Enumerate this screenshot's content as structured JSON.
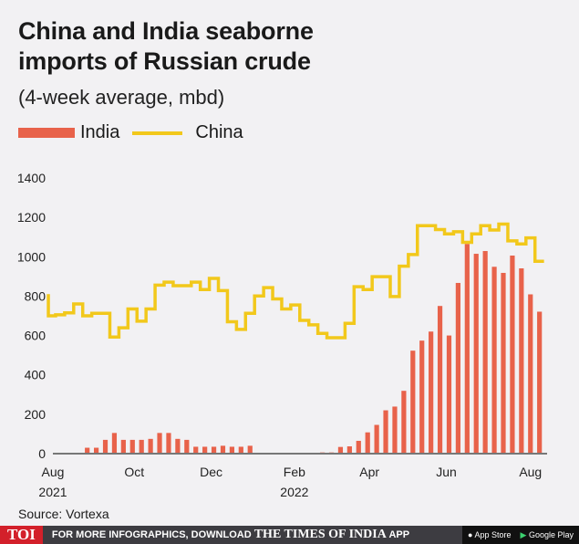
{
  "header": {
    "title_line1": "China and India seaborne",
    "title_line2": "imports of Russian crude",
    "subtitle": "(4-week average, mbd)"
  },
  "legend": {
    "india": "India",
    "china": "China"
  },
  "source": "Source: Vortexa",
  "footer": {
    "logo": "TOI",
    "promo_prefix": "FOR MORE INFOGRAPHICS, DOWNLOAD",
    "brand": "THE TIMES OF INDIA",
    "promo_suffix": "APP",
    "app_store": "App Store",
    "google_play": "Google Play"
  },
  "colors": {
    "india": "#e8624a",
    "china": "#f2c81b",
    "axis": "#777777"
  },
  "chart_data": {
    "type": "bar+line",
    "title": "China and India seaborne imports of Russian crude",
    "ylabel": "4-week average, mbd",
    "ylim": [
      0,
      1400
    ],
    "yticks": [
      0,
      200,
      400,
      600,
      800,
      1000,
      1200,
      1400
    ],
    "x_unit": "week index from start of Aug 2021",
    "xticks": [
      {
        "week": 0,
        "label": "Aug",
        "sub": "2021"
      },
      {
        "week": 9,
        "label": "Oct",
        "sub": ""
      },
      {
        "week": 17.5,
        "label": "Dec",
        "sub": ""
      },
      {
        "week": 26.7,
        "label": "Feb",
        "sub": "2022"
      },
      {
        "week": 35,
        "label": "Apr",
        "sub": ""
      },
      {
        "week": 43.5,
        "label": "Jun",
        "sub": ""
      },
      {
        "week": 52.8,
        "label": "Aug",
        "sub": ""
      }
    ],
    "series": [
      {
        "name": "India",
        "type": "bar",
        "values": [
          0,
          0,
          0,
          0,
          30,
          30,
          70,
          105,
          70,
          70,
          70,
          75,
          105,
          105,
          75,
          70,
          35,
          35,
          35,
          40,
          35,
          35,
          40,
          0,
          0,
          0,
          0,
          0,
          0,
          0,
          6,
          6,
          34,
          37,
          65,
          108,
          146,
          220,
          239,
          319,
          523,
          574,
          620,
          750,
          600,
          867,
          1065,
          1015,
          1029,
          949,
          918,
          1006,
          941,
          809,
          721
        ]
      },
      {
        "name": "China",
        "type": "step-line",
        "values": [
          700,
          705,
          715,
          760,
          700,
          713,
          713,
          592,
          639,
          735,
          673,
          735,
          856,
          871,
          853,
          853,
          871,
          833,
          890,
          828,
          670,
          631,
          713,
          801,
          843,
          786,
          735,
          755,
          677,
          654,
          611,
          589,
          589,
          662,
          848,
          833,
          899,
          899,
          798,
          952,
          1011,
          1158,
          1158,
          1138,
          1116,
          1127,
          1073,
          1116,
          1158,
          1136,
          1166,
          1081,
          1065,
          1096,
          977
        ]
      }
    ],
    "legend_position": "top-left",
    "grid": false
  }
}
